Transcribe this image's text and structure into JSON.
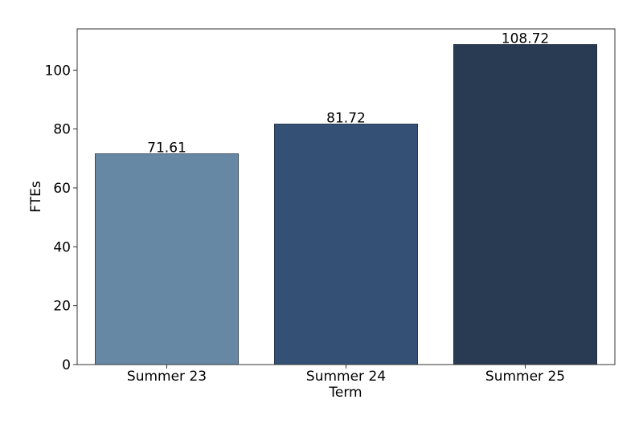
{
  "chart_data": {
    "type": "bar",
    "title": "",
    "xlabel": "Term",
    "ylabel": "FTEs",
    "categories": [
      "Summer 23",
      "Summer 24",
      "Summer 25"
    ],
    "values": [
      71.61,
      81.72,
      108.72
    ],
    "data_labels": [
      "71.61",
      "81.72",
      "108.72"
    ],
    "bar_colors": [
      "#6788a4",
      "#345175",
      "#283b53"
    ],
    "ylim": [
      0,
      114
    ],
    "yticks": [
      0,
      20,
      40,
      60,
      80,
      100
    ],
    "ytick_labels": [
      "0",
      "20",
      "40",
      "60",
      "80",
      "100"
    ],
    "grid": false,
    "legend": "none"
  }
}
